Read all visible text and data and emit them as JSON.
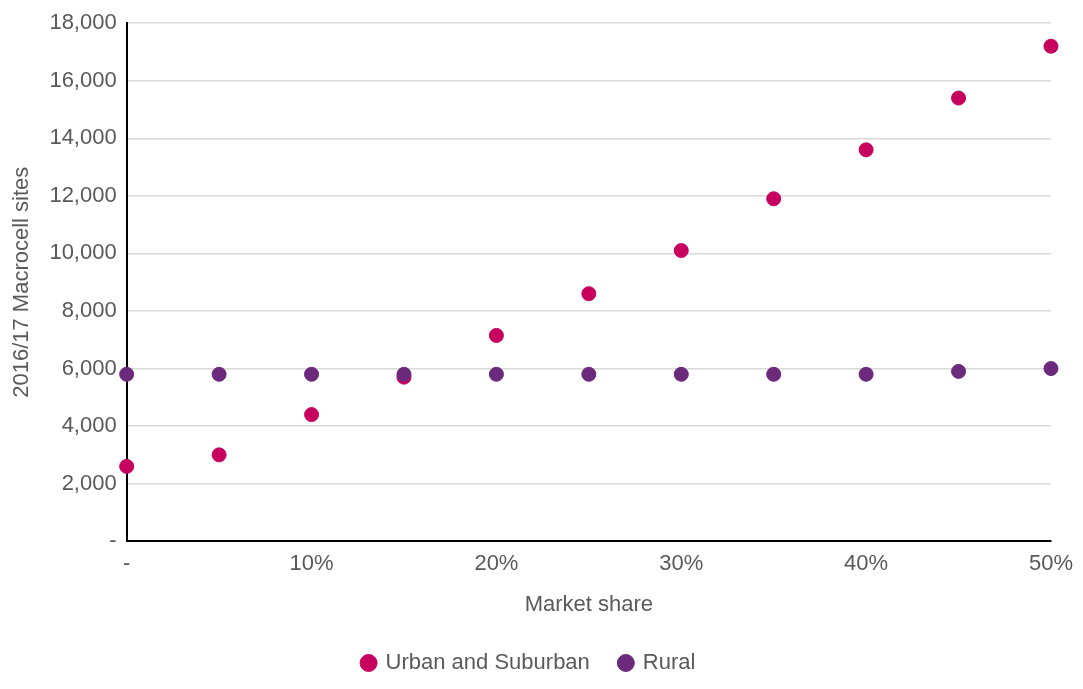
{
  "chart_data": {
    "type": "scatter",
    "xlabel": "Market share",
    "ylabel": "2016/17 Macrocell sites",
    "x": [
      0,
      5,
      10,
      15,
      20,
      25,
      30,
      35,
      40,
      45,
      50
    ],
    "series": [
      {
        "name": "Urban and Suburban",
        "color": "#c7005f",
        "values": [
          2600,
          3000,
          4400,
          5700,
          7150,
          8600,
          10100,
          11900,
          13600,
          15400,
          17200
        ]
      },
      {
        "name": "Rural",
        "color": "#6c2a7c",
        "values": [
          5800,
          5800,
          5800,
          5800,
          5800,
          5800,
          5800,
          5800,
          5800,
          5900,
          6000
        ]
      }
    ],
    "xlim": [
      0,
      50
    ],
    "xticks": [
      {
        "value": 0,
        "label": "-"
      },
      {
        "value": 10,
        "label": "10%"
      },
      {
        "value": 20,
        "label": "20%"
      },
      {
        "value": 30,
        "label": "30%"
      },
      {
        "value": 40,
        "label": "40%"
      },
      {
        "value": 50,
        "label": "50%"
      }
    ],
    "ylim": [
      0,
      18000
    ],
    "yticks": [
      {
        "value": 0,
        "label": "-"
      },
      {
        "value": 2000,
        "label": "2,000"
      },
      {
        "value": 4000,
        "label": "4,000"
      },
      {
        "value": 6000,
        "label": "6,000"
      },
      {
        "value": 8000,
        "label": "8,000"
      },
      {
        "value": 10000,
        "label": "10,000"
      },
      {
        "value": 12000,
        "label": "12,000"
      },
      {
        "value": 14000,
        "label": "14,000"
      },
      {
        "value": 16000,
        "label": "16,000"
      },
      {
        "value": 18000,
        "label": "18,000"
      }
    ],
    "grid": "y",
    "legend": "bottom",
    "marker": "circle"
  }
}
